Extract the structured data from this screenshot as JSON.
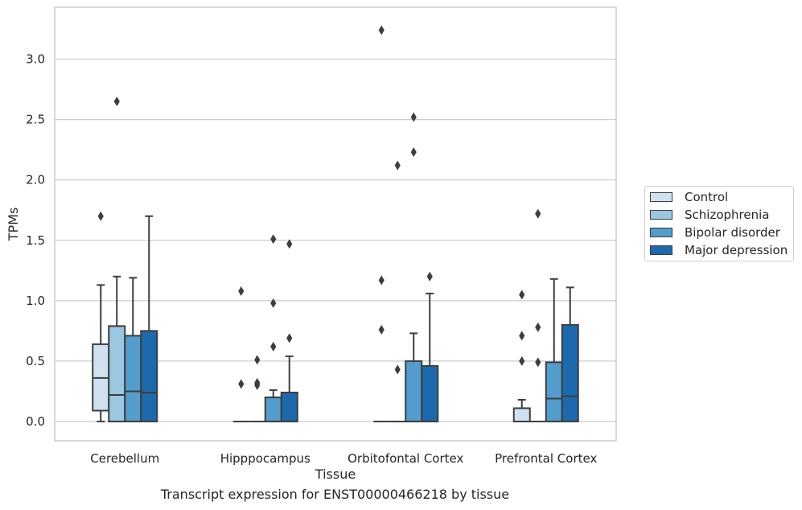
{
  "caption": "Transcript expression for ENST00000466218 by tissue",
  "chart_data": {
    "type": "box",
    "xlabel": "Tissue",
    "ylabel": "TPMs",
    "ylim": [
      -0.16,
      3.43
    ],
    "yticks": [
      "0.0",
      "0.5",
      "1.0",
      "1.5",
      "2.0",
      "2.5",
      "3.0"
    ],
    "grid": "horizontal",
    "legend_position": "right",
    "categories": [
      "Cerebellum",
      "Hipppocampus",
      "Orbitofontal Cortex",
      "Prefrontal Cortex"
    ],
    "series": [
      {
        "name": "Control",
        "color": "#d0e2f2",
        "boxes": [
          {
            "whisker_low": 0.0,
            "q1": 0.09,
            "median": 0.36,
            "q3": 0.64,
            "whisker_high": 1.13,
            "outliers": [
              1.7
            ]
          },
          {
            "whisker_low": 0.0,
            "q1": 0.0,
            "median": 0.0,
            "q3": 0.0,
            "whisker_high": 0.0,
            "outliers": [
              0.31,
              1.08
            ]
          },
          {
            "whisker_low": 0.0,
            "q1": 0.0,
            "median": 0.0,
            "q3": 0.0,
            "whisker_high": 0.0,
            "outliers": [
              0.76,
              1.17,
              3.24
            ]
          },
          {
            "whisker_low": 0.0,
            "q1": 0.0,
            "median": 0.0,
            "q3": 0.11,
            "whisker_high": 0.18,
            "outliers": [
              0.5,
              0.71,
              1.05
            ]
          }
        ]
      },
      {
        "name": "Schizophrenia",
        "color": "#9ac8e0",
        "boxes": [
          {
            "whisker_low": 0.0,
            "q1": 0.0,
            "median": 0.22,
            "q3": 0.79,
            "whisker_high": 1.2,
            "outliers": [
              2.65
            ]
          },
          {
            "whisker_low": 0.0,
            "q1": 0.0,
            "median": 0.0,
            "q3": 0.0,
            "whisker_high": 0.0,
            "outliers": [
              0.3,
              0.32,
              0.51
            ]
          },
          {
            "whisker_low": 0.0,
            "q1": 0.0,
            "median": 0.0,
            "q3": 0.0,
            "whisker_high": 0.0,
            "outliers": [
              0.43,
              2.12
            ]
          },
          {
            "whisker_low": 0.0,
            "q1": 0.0,
            "median": 0.0,
            "q3": 0.0,
            "whisker_high": 0.0,
            "outliers": [
              0.49,
              0.78,
              1.72
            ]
          }
        ]
      },
      {
        "name": "Bipolar disorder",
        "color": "#529dcc",
        "boxes": [
          {
            "whisker_low": 0.0,
            "q1": 0.0,
            "median": 0.25,
            "q3": 0.71,
            "whisker_high": 1.19,
            "outliers": []
          },
          {
            "whisker_low": 0.0,
            "q1": 0.0,
            "median": 0.0,
            "q3": 0.2,
            "whisker_high": 0.26,
            "outliers": [
              0.62,
              0.98,
              1.51
            ]
          },
          {
            "whisker_low": 0.0,
            "q1": 0.0,
            "median": 0.0,
            "q3": 0.5,
            "whisker_high": 0.73,
            "outliers": [
              2.23,
              2.52
            ]
          },
          {
            "whisker_low": 0.0,
            "q1": 0.0,
            "median": 0.19,
            "q3": 0.49,
            "whisker_high": 1.18,
            "outliers": []
          }
        ]
      },
      {
        "name": "Major depression",
        "color": "#1c6aad",
        "boxes": [
          {
            "whisker_low": 0.0,
            "q1": 0.0,
            "median": 0.24,
            "q3": 0.75,
            "whisker_high": 1.7,
            "outliers": []
          },
          {
            "whisker_low": 0.0,
            "q1": 0.0,
            "median": 0.0,
            "q3": 0.24,
            "whisker_high": 0.54,
            "outliers": [
              0.69,
              1.47
            ]
          },
          {
            "whisker_low": 0.0,
            "q1": 0.0,
            "median": 0.0,
            "q3": 0.46,
            "whisker_high": 1.06,
            "outliers": [
              1.2
            ]
          },
          {
            "whisker_low": 0.0,
            "q1": 0.0,
            "median": 0.21,
            "q3": 0.8,
            "whisker_high": 1.11,
            "outliers": []
          }
        ]
      }
    ]
  }
}
